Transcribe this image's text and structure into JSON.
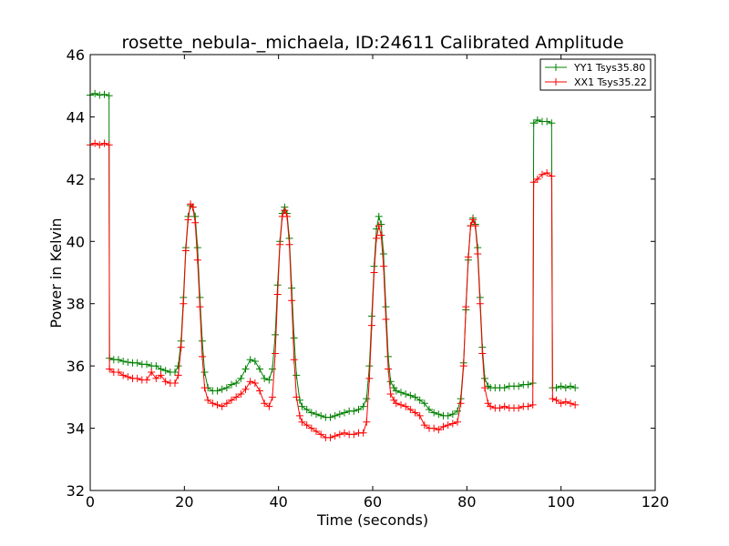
{
  "chart_data": {
    "type": "line",
    "title": "rosette_nebula-_michaela, ID:24611 Calibrated Amplitude",
    "xlabel": "Time (seconds)",
    "ylabel": "Power in Kelvin",
    "xlim": [
      0,
      120
    ],
    "ylim": [
      32,
      46
    ],
    "xticks": [
      0,
      20,
      40,
      60,
      80,
      100,
      120
    ],
    "yticks": [
      32,
      34,
      36,
      38,
      40,
      42,
      44,
      46
    ],
    "grid": false,
    "legend_position": "top-right",
    "series": [
      {
        "name": "YY1 Tsys35.80",
        "color": "#008000",
        "marker": "+",
        "points": [
          [
            0,
            44.7
          ],
          [
            1,
            44.75
          ],
          [
            2,
            44.7
          ],
          [
            3,
            44.72
          ],
          [
            4,
            44.68
          ],
          [
            4.1,
            36.25
          ],
          [
            5,
            36.2
          ],
          [
            6,
            36.2
          ],
          [
            7,
            36.15
          ],
          [
            8,
            36.12
          ],
          [
            9,
            36.1
          ],
          [
            10,
            36.1
          ],
          [
            11,
            36.05
          ],
          [
            12,
            36.05
          ],
          [
            13,
            36.0
          ],
          [
            14,
            36.0
          ],
          [
            15,
            35.9
          ],
          [
            16,
            35.85
          ],
          [
            17,
            35.8
          ],
          [
            18,
            35.8
          ],
          [
            18.7,
            36.0
          ],
          [
            19.3,
            36.8
          ],
          [
            19.8,
            38.2
          ],
          [
            20.3,
            39.8
          ],
          [
            20.8,
            40.8
          ],
          [
            21.3,
            41.15
          ],
          [
            21.8,
            41.1
          ],
          [
            22.3,
            40.8
          ],
          [
            22.8,
            39.8
          ],
          [
            23.3,
            38.2
          ],
          [
            23.8,
            36.8
          ],
          [
            24.3,
            35.8
          ],
          [
            25,
            35.3
          ],
          [
            26,
            35.2
          ],
          [
            27,
            35.2
          ],
          [
            28,
            35.25
          ],
          [
            29,
            35.3
          ],
          [
            30,
            35.4
          ],
          [
            31,
            35.45
          ],
          [
            32,
            35.6
          ],
          [
            33,
            35.9
          ],
          [
            34,
            36.2
          ],
          [
            35,
            36.15
          ],
          [
            36,
            35.9
          ],
          [
            37,
            35.6
          ],
          [
            38,
            35.55
          ],
          [
            38.7,
            35.9
          ],
          [
            39.3,
            37.0
          ],
          [
            39.8,
            38.6
          ],
          [
            40.3,
            40.0
          ],
          [
            40.8,
            40.9
          ],
          [
            41.3,
            41.1
          ],
          [
            41.8,
            40.9
          ],
          [
            42.3,
            40.1
          ],
          [
            42.8,
            38.5
          ],
          [
            43.3,
            36.9
          ],
          [
            43.8,
            35.7
          ],
          [
            44.5,
            34.9
          ],
          [
            45,
            34.7
          ],
          [
            46,
            34.6
          ],
          [
            47,
            34.5
          ],
          [
            48,
            34.45
          ],
          [
            49,
            34.4
          ],
          [
            50,
            34.35
          ],
          [
            51,
            34.35
          ],
          [
            52,
            34.4
          ],
          [
            53,
            34.45
          ],
          [
            54,
            34.5
          ],
          [
            55,
            34.55
          ],
          [
            56,
            34.55
          ],
          [
            57,
            34.6
          ],
          [
            58,
            34.7
          ],
          [
            58.7,
            34.95
          ],
          [
            59.3,
            36.0
          ],
          [
            59.8,
            37.6
          ],
          [
            60.3,
            39.2
          ],
          [
            60.8,
            40.4
          ],
          [
            61.3,
            40.8
          ],
          [
            61.8,
            40.55
          ],
          [
            62.3,
            39.6
          ],
          [
            62.8,
            37.9
          ],
          [
            63.3,
            36.3
          ],
          [
            63.8,
            35.5
          ],
          [
            64.5,
            35.3
          ],
          [
            65,
            35.2
          ],
          [
            66,
            35.15
          ],
          [
            67,
            35.1
          ],
          [
            68,
            35.05
          ],
          [
            69,
            35.0
          ],
          [
            70,
            34.9
          ],
          [
            71,
            34.8
          ],
          [
            72,
            34.6
          ],
          [
            73,
            34.5
          ],
          [
            74,
            34.45
          ],
          [
            75,
            34.4
          ],
          [
            76,
            34.4
          ],
          [
            77,
            34.45
          ],
          [
            78,
            34.55
          ],
          [
            78.7,
            34.95
          ],
          [
            79.3,
            36.1
          ],
          [
            79.8,
            37.8
          ],
          [
            80.3,
            39.4
          ],
          [
            80.8,
            40.5
          ],
          [
            81.3,
            40.75
          ],
          [
            81.8,
            40.55
          ],
          [
            82.3,
            39.8
          ],
          [
            82.8,
            38.2
          ],
          [
            83.3,
            36.6
          ],
          [
            83.8,
            35.6
          ],
          [
            84.5,
            35.35
          ],
          [
            85,
            35.3
          ],
          [
            86,
            35.3
          ],
          [
            87,
            35.3
          ],
          [
            88,
            35.3
          ],
          [
            89,
            35.35
          ],
          [
            90,
            35.35
          ],
          [
            91,
            35.35
          ],
          [
            92,
            35.4
          ],
          [
            93,
            35.4
          ],
          [
            94,
            35.45
          ],
          [
            94.2,
            43.8
          ],
          [
            95,
            43.9
          ],
          [
            96,
            43.85
          ],
          [
            97,
            43.85
          ],
          [
            98,
            43.8
          ],
          [
            98.2,
            35.3
          ],
          [
            99,
            35.3
          ],
          [
            100,
            35.35
          ],
          [
            101,
            35.3
          ],
          [
            102,
            35.35
          ],
          [
            103,
            35.3
          ]
        ]
      },
      {
        "name": "XX1 Tsys35.22",
        "color": "#ff0000",
        "marker": "+",
        "points": [
          [
            0,
            43.1
          ],
          [
            1,
            43.15
          ],
          [
            2,
            43.1
          ],
          [
            3,
            43.15
          ],
          [
            4,
            43.1
          ],
          [
            4.1,
            35.9
          ],
          [
            5,
            35.8
          ],
          [
            6,
            35.8
          ],
          [
            7,
            35.7
          ],
          [
            8,
            35.65
          ],
          [
            9,
            35.6
          ],
          [
            10,
            35.6
          ],
          [
            11,
            35.55
          ],
          [
            12,
            35.55
          ],
          [
            13,
            35.8
          ],
          [
            14,
            35.6
          ],
          [
            15,
            35.7
          ],
          [
            16,
            35.5
          ],
          [
            17,
            35.45
          ],
          [
            18,
            35.45
          ],
          [
            18.7,
            35.7
          ],
          [
            19.3,
            36.6
          ],
          [
            19.8,
            38.0
          ],
          [
            20.3,
            39.7
          ],
          [
            20.8,
            40.7
          ],
          [
            21.3,
            41.2
          ],
          [
            21.8,
            41.1
          ],
          [
            22.3,
            40.6
          ],
          [
            22.8,
            39.4
          ],
          [
            23.3,
            37.9
          ],
          [
            23.8,
            36.3
          ],
          [
            24.3,
            35.3
          ],
          [
            25,
            34.9
          ],
          [
            26,
            34.8
          ],
          [
            27,
            34.75
          ],
          [
            28,
            34.7
          ],
          [
            29,
            34.8
          ],
          [
            30,
            34.9
          ],
          [
            31,
            35.0
          ],
          [
            32,
            35.1
          ],
          [
            33,
            35.25
          ],
          [
            34,
            35.5
          ],
          [
            35,
            35.45
          ],
          [
            36,
            35.2
          ],
          [
            37,
            34.8
          ],
          [
            38,
            34.7
          ],
          [
            38.7,
            35.0
          ],
          [
            39.3,
            36.4
          ],
          [
            39.8,
            38.3
          ],
          [
            40.3,
            39.9
          ],
          [
            40.8,
            40.8
          ],
          [
            41.3,
            41.0
          ],
          [
            41.8,
            40.8
          ],
          [
            42.3,
            39.9
          ],
          [
            42.8,
            38.1
          ],
          [
            43.3,
            36.2
          ],
          [
            43.8,
            35.0
          ],
          [
            44.5,
            34.4
          ],
          [
            45,
            34.2
          ],
          [
            46,
            34.1
          ],
          [
            47,
            34.0
          ],
          [
            48,
            33.9
          ],
          [
            49,
            33.8
          ],
          [
            50,
            33.7
          ],
          [
            51,
            33.7
          ],
          [
            52,
            33.75
          ],
          [
            53,
            33.8
          ],
          [
            54,
            33.85
          ],
          [
            55,
            33.8
          ],
          [
            56,
            33.8
          ],
          [
            57,
            33.85
          ],
          [
            58,
            33.85
          ],
          [
            58.7,
            34.2
          ],
          [
            59.3,
            35.6
          ],
          [
            59.8,
            37.3
          ],
          [
            60.3,
            39.0
          ],
          [
            60.8,
            40.1
          ],
          [
            61.3,
            40.5
          ],
          [
            61.8,
            40.2
          ],
          [
            62.3,
            39.2
          ],
          [
            62.8,
            37.5
          ],
          [
            63.3,
            35.9
          ],
          [
            63.8,
            35.1
          ],
          [
            64.5,
            34.9
          ],
          [
            65,
            34.8
          ],
          [
            66,
            34.75
          ],
          [
            67,
            34.7
          ],
          [
            68,
            34.6
          ],
          [
            69,
            34.5
          ],
          [
            70,
            34.4
          ],
          [
            71,
            34.1
          ],
          [
            72,
            34.0
          ],
          [
            73,
            34.0
          ],
          [
            74,
            33.95
          ],
          [
            75,
            34.05
          ],
          [
            76,
            34.1
          ],
          [
            77,
            34.15
          ],
          [
            78,
            34.2
          ],
          [
            78.7,
            34.8
          ],
          [
            79.3,
            36.0
          ],
          [
            79.8,
            37.9
          ],
          [
            80.3,
            39.5
          ],
          [
            80.8,
            40.5
          ],
          [
            81.3,
            40.7
          ],
          [
            81.8,
            40.5
          ],
          [
            82.3,
            39.6
          ],
          [
            82.8,
            38.0
          ],
          [
            83.3,
            36.4
          ],
          [
            83.8,
            35.3
          ],
          [
            84.5,
            34.8
          ],
          [
            85,
            34.7
          ],
          [
            86,
            34.65
          ],
          [
            87,
            34.65
          ],
          [
            88,
            34.7
          ],
          [
            89,
            34.65
          ],
          [
            90,
            34.65
          ],
          [
            91,
            34.65
          ],
          [
            92,
            34.7
          ],
          [
            93,
            34.7
          ],
          [
            94,
            34.75
          ],
          [
            94.2,
            41.9
          ],
          [
            95,
            42.0
          ],
          [
            96,
            42.15
          ],
          [
            97,
            42.2
          ],
          [
            98,
            42.1
          ],
          [
            98.2,
            34.95
          ],
          [
            99,
            34.9
          ],
          [
            100,
            34.8
          ],
          [
            101,
            34.85
          ],
          [
            102,
            34.8
          ],
          [
            103,
            34.75
          ]
        ]
      }
    ]
  }
}
